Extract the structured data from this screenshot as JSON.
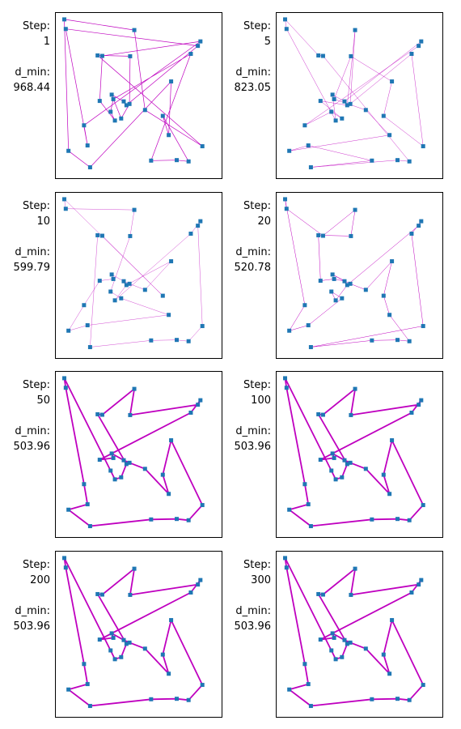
{
  "chart_data": {
    "type": "scatter",
    "description_labels": {
      "step": "Step:",
      "dmin": "d_min:"
    },
    "cities": [
      [
        3.8,
        97.5
      ],
      [
        4.7,
        91.5
      ],
      [
        47.5,
        90.8
      ],
      [
        88.8,
        83.7
      ],
      [
        87.2,
        80.9
      ],
      [
        44.9,
        74.4
      ],
      [
        82.8,
        75.9
      ],
      [
        25.9,
        46.4
      ],
      [
        34.4,
        47.5
      ],
      [
        40.9,
        46.1
      ],
      [
        44.5,
        44.5
      ],
      [
        42.6,
        43.7
      ],
      [
        54.2,
        40.7
      ],
      [
        32.7,
        39.6
      ],
      [
        39.3,
        35.4
      ],
      [
        35.4,
        34.1
      ],
      [
        16.1,
        31.1
      ],
      [
        65.3,
        37.0
      ],
      [
        70.5,
        58.6
      ],
      [
        18.3,
        18.5
      ],
      [
        6.4,
        15.1
      ],
      [
        90.0,
        18.0
      ],
      [
        74.0,
        9.3
      ],
      [
        81.4,
        8.5
      ],
      [
        58.0,
        9.0
      ],
      [
        27.5,
        74.6
      ],
      [
        24.6,
        74.9
      ],
      [
        19.9,
        4.8
      ],
      [
        69.0,
        25.0
      ],
      [
        33.4,
        50.3
      ]
    ],
    "panels": [
      {
        "step": "1",
        "dmin": "968.44",
        "weight": 0.7,
        "tour": [
          0,
          2,
          12,
          21,
          26,
          5,
          10,
          14,
          29,
          9,
          11,
          4,
          1,
          19,
          16,
          3,
          25,
          7,
          15,
          13,
          8,
          6,
          24,
          22,
          23,
          17,
          28,
          18,
          27,
          20,
          0
        ]
      },
      {
        "step": "5",
        "dmin": "823.05",
        "weight": 0.4,
        "tour": [
          0,
          1,
          15,
          29,
          9,
          3,
          4,
          16,
          13,
          14,
          7,
          11,
          2,
          10,
          6,
          21,
          17,
          18,
          5,
          8,
          12,
          28,
          20,
          19,
          24,
          27,
          22,
          23,
          25,
          26,
          0
        ]
      },
      {
        "step": "10",
        "dmin": "599.79",
        "weight": 0.35,
        "tour": [
          0,
          1,
          2,
          5,
          13,
          14,
          28,
          19,
          20,
          16,
          7,
          8,
          29,
          9,
          10,
          12,
          18,
          11,
          15,
          6,
          3,
          4,
          21,
          23,
          22,
          24,
          27,
          26,
          25,
          17,
          0
        ]
      },
      {
        "step": "20",
        "dmin": "520.78",
        "weight": 0.5,
        "tour": [
          0,
          1,
          25,
          2,
          5,
          26,
          7,
          8,
          9,
          29,
          10,
          12,
          18,
          17,
          28,
          23,
          22,
          24,
          27,
          21,
          6,
          3,
          4,
          11,
          15,
          13,
          14,
          19,
          20,
          16,
          0
        ]
      },
      {
        "step": "50",
        "dmin": "503.96",
        "weight": 1.8,
        "tour": [
          0,
          1,
          16,
          19,
          20,
          27,
          24,
          22,
          23,
          21,
          18,
          17,
          28,
          12,
          10,
          9,
          29,
          8,
          7,
          6,
          3,
          4,
          5,
          2,
          25,
          26,
          11,
          14,
          15,
          13,
          0
        ]
      },
      {
        "step": "100",
        "dmin": "503.96",
        "weight": 1.8,
        "tour": [
          0,
          1,
          16,
          19,
          20,
          27,
          24,
          22,
          23,
          21,
          18,
          17,
          28,
          12,
          10,
          9,
          29,
          8,
          7,
          6,
          3,
          4,
          5,
          2,
          25,
          26,
          11,
          14,
          15,
          13,
          0
        ]
      },
      {
        "step": "200",
        "dmin": "503.96",
        "weight": 1.8,
        "tour": [
          0,
          1,
          16,
          19,
          20,
          27,
          24,
          22,
          23,
          21,
          18,
          17,
          28,
          12,
          10,
          9,
          29,
          8,
          7,
          6,
          3,
          4,
          5,
          2,
          25,
          26,
          11,
          14,
          15,
          13,
          0
        ]
      },
      {
        "step": "300",
        "dmin": "503.96",
        "weight": 1.8,
        "tour": [
          0,
          1,
          16,
          19,
          20,
          27,
          24,
          22,
          23,
          21,
          18,
          17,
          28,
          12,
          10,
          9,
          29,
          8,
          7,
          6,
          3,
          4,
          5,
          2,
          25,
          26,
          11,
          14,
          15,
          13,
          0
        ]
      }
    ],
    "xlim": [
      0,
      100
    ],
    "ylim": [
      0,
      100
    ],
    "grid": false,
    "colors": {
      "marker": "#1f77b4",
      "route": "#bf00bf",
      "frame": "#000000"
    }
  }
}
